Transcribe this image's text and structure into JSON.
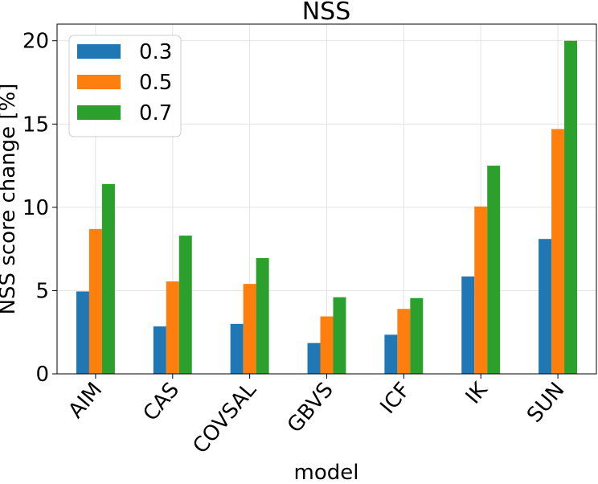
{
  "chart_data": {
    "type": "bar",
    "title": "NSS",
    "xlabel": "model",
    "ylabel": "NSS score change [%]",
    "categories": [
      "AIM",
      "CAS",
      "COVSAL",
      "GBVS",
      "ICF",
      "IK",
      "SUN"
    ],
    "series": [
      {
        "name": "0.3",
        "color": "#1f77b4",
        "values": [
          4.95,
          2.85,
          3.0,
          1.85,
          2.35,
          5.85,
          8.1
        ]
      },
      {
        "name": "0.5",
        "color": "#ff7f0e",
        "values": [
          8.7,
          5.55,
          5.4,
          3.45,
          3.9,
          10.05,
          14.7
        ]
      },
      {
        "name": "0.7",
        "color": "#2ca02c",
        "values": [
          11.4,
          8.3,
          6.95,
          4.6,
          4.55,
          12.5,
          20.0
        ]
      }
    ],
    "ylim": [
      0,
      21
    ],
    "yticks": [
      0,
      5,
      10,
      15,
      20
    ],
    "grid": true,
    "legend_position": "top-left"
  }
}
